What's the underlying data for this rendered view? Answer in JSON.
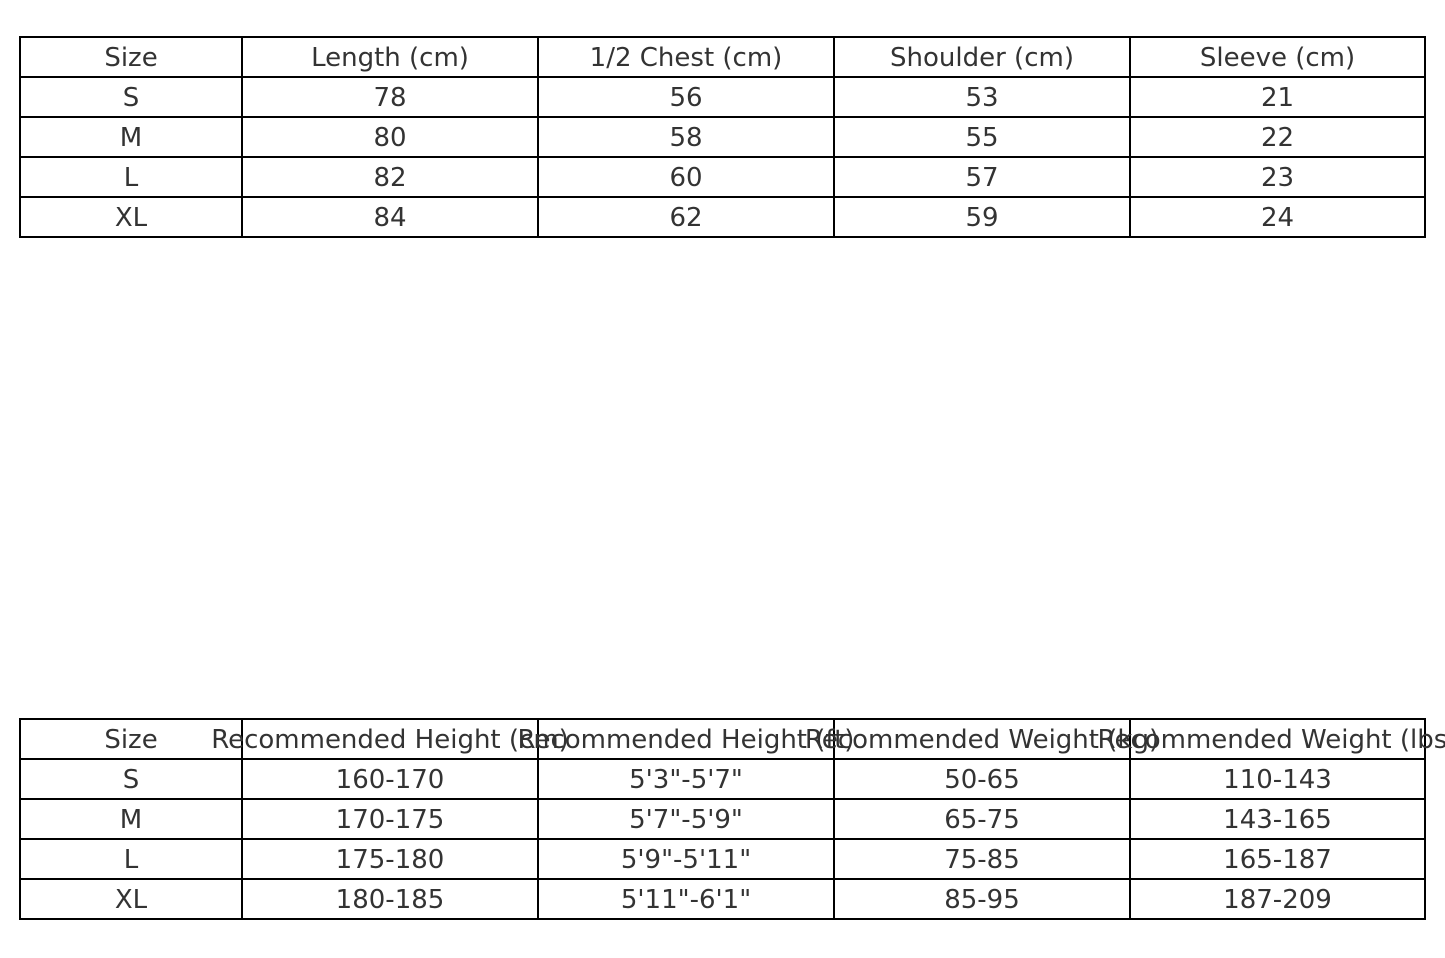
{
  "measurements_table": {
    "headers": [
      "Size",
      "Length (cm)",
      "1/2 Chest (cm)",
      "Shoulder (cm)",
      "Sleeve (cm)"
    ],
    "rows": [
      [
        "S",
        "78",
        "56",
        "53",
        "21"
      ],
      [
        "M",
        "80",
        "58",
        "55",
        "22"
      ],
      [
        "L",
        "82",
        "60",
        "57",
        "23"
      ],
      [
        "XL",
        "84",
        "62",
        "59",
        "24"
      ]
    ]
  },
  "recommendation_table": {
    "headers": [
      "Size",
      "Recommended Height (cm)",
      "Recommended Height (ft)",
      "Recommended Weight (kg)",
      "Recommended Weight (lbs)"
    ],
    "rows": [
      [
        "S",
        "160-170",
        "5'3\"-5'7\"",
        "50-65",
        "110-143"
      ],
      [
        "M",
        "170-175",
        "5'7\"-5'9\"",
        "65-75",
        "143-165"
      ],
      [
        "L",
        "175-180",
        "5'9\"-5'11\"",
        "75-85",
        "165-187"
      ],
      [
        "XL",
        "180-185",
        "5'11\"-6'1\"",
        "85-95",
        "187-209"
      ]
    ]
  }
}
